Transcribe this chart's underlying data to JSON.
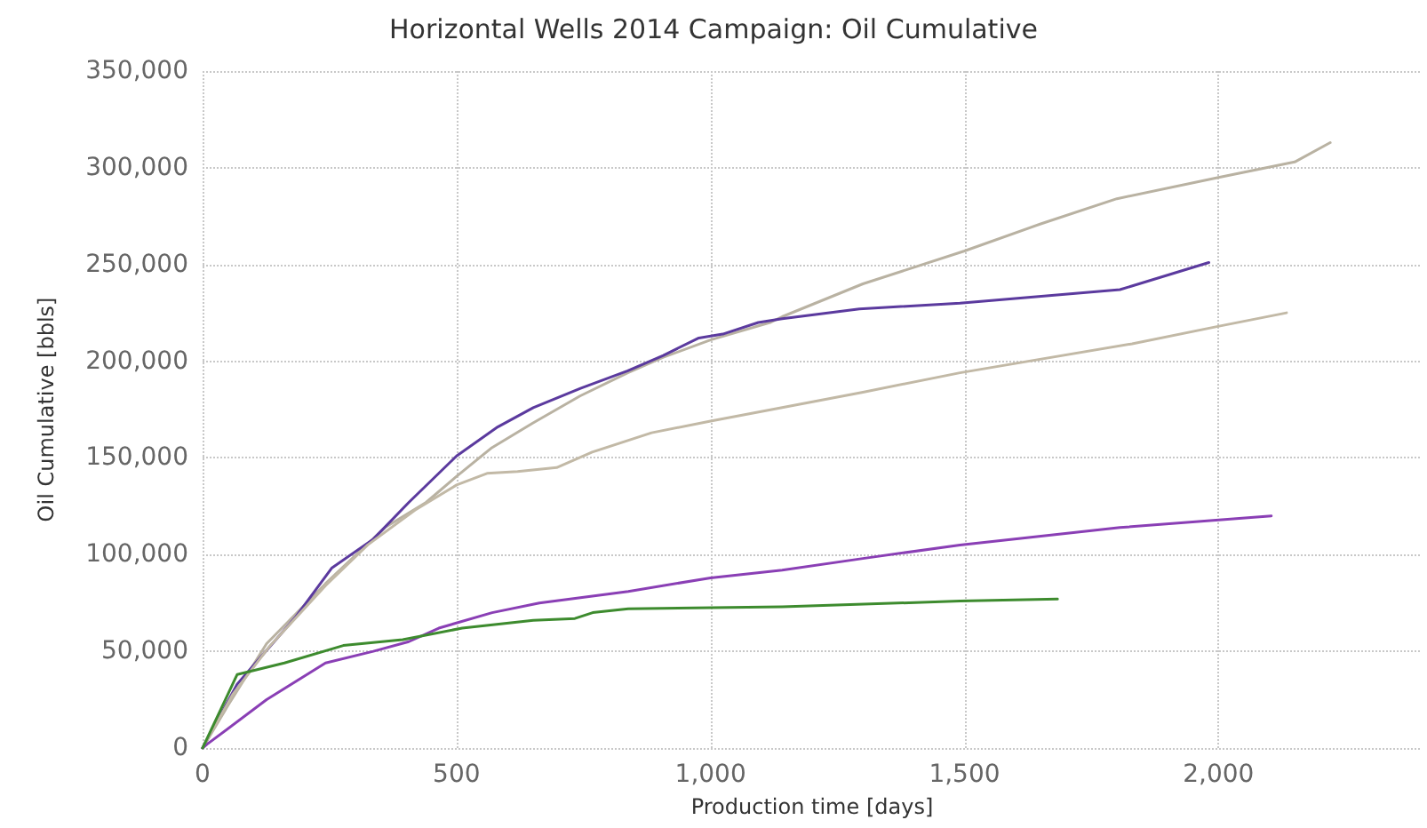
{
  "chart_data": {
    "type": "line",
    "title": "Horizontal Wells 2014 Campaign: Oil Cumulative",
    "xlabel": "Production time [days]",
    "ylabel": "Oil Cumulative [bbls]",
    "xlim": [
      0,
      2400
    ],
    "xticks": [
      0,
      500,
      {
        "value": 1000,
        "label": "1,000"
      },
      {
        "value": 1500,
        "label": "1,500"
      },
      {
        "value": 2000,
        "label": "2,000"
      }
    ],
    "ylim": [
      0,
      350000
    ],
    "yticks": [
      0,
      {
        "value": 50000,
        "label": "50,000"
      },
      {
        "value": 100000,
        "label": "100,000"
      },
      {
        "value": 150000,
        "label": "150,000"
      },
      {
        "value": 200000,
        "label": "200,000"
      },
      {
        "value": 250000,
        "label": "250,000"
      },
      {
        "value": 300000,
        "label": "300,000"
      },
      {
        "value": 350000,
        "label": "350,000"
      }
    ],
    "grid": true,
    "marker": "none",
    "line_style": "solid",
    "series": [
      {
        "color": "#b9b2a2",
        "x": [
          0,
          50,
          126,
          242,
          359,
          440,
          498,
          568,
          650,
          743,
          837,
          907,
          1000,
          1117,
          1141,
          1300,
          1500,
          1650,
          1800,
          2000,
          2150,
          2220
        ],
        "values": [
          0,
          22000,
          54000,
          85000,
          114000,
          127000,
          140000,
          155000,
          168000,
          182000,
          194000,
          202000,
          211000,
          220000,
          223000,
          240000,
          257000,
          271000,
          284000,
          295000,
          303000,
          313000
        ]
      },
      {
        "color": "#5b3a9e",
        "x": [
          0,
          68,
          184,
          254,
          336,
          406,
          500,
          581,
          651,
          744,
          837,
          907,
          977,
          1024,
          1094,
          1141,
          1293,
          1491,
          1806,
          1981
        ],
        "values": [
          0,
          33000,
          68000,
          93000,
          108000,
          127000,
          151000,
          166000,
          176000,
          186000,
          195000,
          203000,
          212000,
          214000,
          220000,
          222000,
          227000,
          230000,
          237000,
          251000
        ]
      },
      {
        "color": "#c2b9a6",
        "x": [
          0,
          60,
          130,
          242,
          325,
          418,
          500,
          560,
          620,
          697,
          767,
          884,
          1000,
          1141,
          1300,
          1491,
          1830,
          1999,
          2134
        ],
        "values": [
          0,
          28000,
          52000,
          84000,
          105000,
          123000,
          136000,
          142000,
          143000,
          145000,
          153000,
          163000,
          169000,
          176000,
          184000,
          194000,
          209000,
          218000,
          225000
        ]
      },
      {
        "color": "#8a3fb5",
        "x": [
          0,
          9,
          126,
          242,
          336,
          406,
          465,
          570,
          663,
          838,
          1000,
          1141,
          1300,
          1491,
          1806,
          2104
        ],
        "values": [
          0,
          2000,
          25000,
          44000,
          50000,
          55000,
          62000,
          70000,
          75000,
          81000,
          88000,
          92000,
          98000,
          105000,
          114000,
          120000
        ]
      },
      {
        "color": "#3d8b2e",
        "x": [
          0,
          68,
          161,
          277,
          394,
          511,
          651,
          733,
          768,
          838,
          1141,
          1491,
          1683
        ],
        "values": [
          0,
          38000,
          44000,
          53000,
          56000,
          62000,
          66000,
          67000,
          70000,
          72000,
          73000,
          76000,
          77000
        ]
      }
    ]
  }
}
